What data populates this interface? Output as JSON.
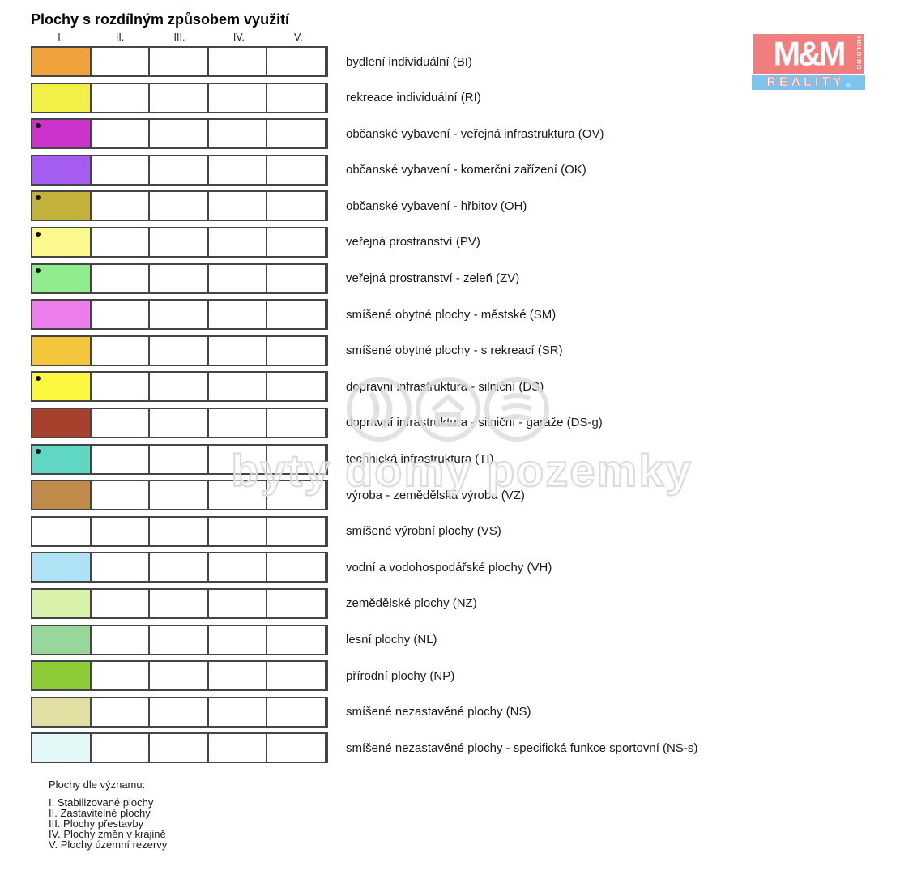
{
  "legend": {
    "title": "Plochy s rozdílným způsobem využití",
    "columns": [
      "I.",
      "II.",
      "III.",
      "IV.",
      "V."
    ],
    "rows": [
      {
        "label": "bydlení individuální (BI)",
        "color": "#F0A33C",
        "dot": false
      },
      {
        "label": "rekreace individuální (RI)",
        "color": "#F2EF48",
        "dot": false
      },
      {
        "label": "občanské vybavení - veřejná infrastruktura (OV)",
        "color": "#CC33CC",
        "dot": true
      },
      {
        "label": "občanské vybavení - komerční zařízení (OK)",
        "color": "#A55CF0",
        "dot": false
      },
      {
        "label": "občanské vybavení - hřbitov (OH)",
        "color": "#C2B23C",
        "dot": true
      },
      {
        "label": "veřejná prostranství (PV)",
        "color": "#FBF98E",
        "dot": true
      },
      {
        "label": "veřejná prostranství - zeleň (ZV)",
        "color": "#8FED8D",
        "dot": true
      },
      {
        "label": "smíšené obytné plochy - městské (SM)",
        "color": "#EC7EEC",
        "dot": false
      },
      {
        "label": "smíšené obytné plochy - s rekreací (SR)",
        "color": "#F3C63B",
        "dot": false,
        "patterns": {
          "2": "crosshatch-gold",
          "3": "stripes-gold"
        }
      },
      {
        "label": "dopravní infrastruktura - silniční (DS)",
        "color": "#FBF840",
        "dot": true
      },
      {
        "label": "dopravní infrastruktura - silniční - garáže (DS-g)",
        "color": "#A8402E",
        "dot": false
      },
      {
        "label": "technická infrastruktura (TI)",
        "color": "#5FD7C3",
        "dot": true
      },
      {
        "label": "výroba - zemědělská výroba (VZ)",
        "color": "#C08A4A",
        "dot": false
      },
      {
        "label": "smíšené výrobní plochy (VS)",
        "color": "#FFFFFF",
        "dot": false,
        "patterns": {
          "2": "crosshatch-violet"
        }
      },
      {
        "label": "vodní a vodohospodářské plochy (VH)",
        "color": "#B0E2F5",
        "dot": false,
        "patterns": {
          "4": "grid-cyan"
        }
      },
      {
        "label": "zemědělské plochy (NZ)",
        "color": "#D9F2AB",
        "dot": false
      },
      {
        "label": "lesní plochy (NL)",
        "color": "#99D699",
        "dot": false
      },
      {
        "label": "přírodní plochy (NP)",
        "color": "#8DCB37",
        "dot": false
      },
      {
        "label": "smíšené nezastavěné plochy (NS)",
        "color": "#E1DFA3",
        "dot": false
      },
      {
        "label": "smíšené nezastavěné plochy - specifická funkce sportovní (NS-s)",
        "color": "#E2F9F8",
        "dot": false
      }
    ],
    "pattern_colors": {
      "crosshatch_gold": "#F2CB4E",
      "stripes_gold_line": "#7C6A1A",
      "stripes_gold_bg": "#F3C63B",
      "crosshatch_violet": "#C3C3F2",
      "grid_cyan": "#AEE6F0"
    },
    "notes": {
      "heading": "Plochy dle významu:",
      "items": [
        "I. Stabilizované plochy",
        "II. Zastavitelné plochy",
        "III. Plochy přestavby",
        "IV. Plochy změn v krajině",
        "V. Plochy územní rezervy"
      ]
    }
  },
  "watermark": {
    "text": "byty domy pozemky",
    "icons": [
      "key-circle-icon",
      "house-circle-icon",
      "land-circle-icon"
    ],
    "color": "#DEDEDE"
  },
  "logo": {
    "mm": "M&M",
    "holding": "HOLDING",
    "reality": "REALITY",
    "registered": "®",
    "pink": "#F07E7E",
    "blue": "#7CC4EE"
  }
}
